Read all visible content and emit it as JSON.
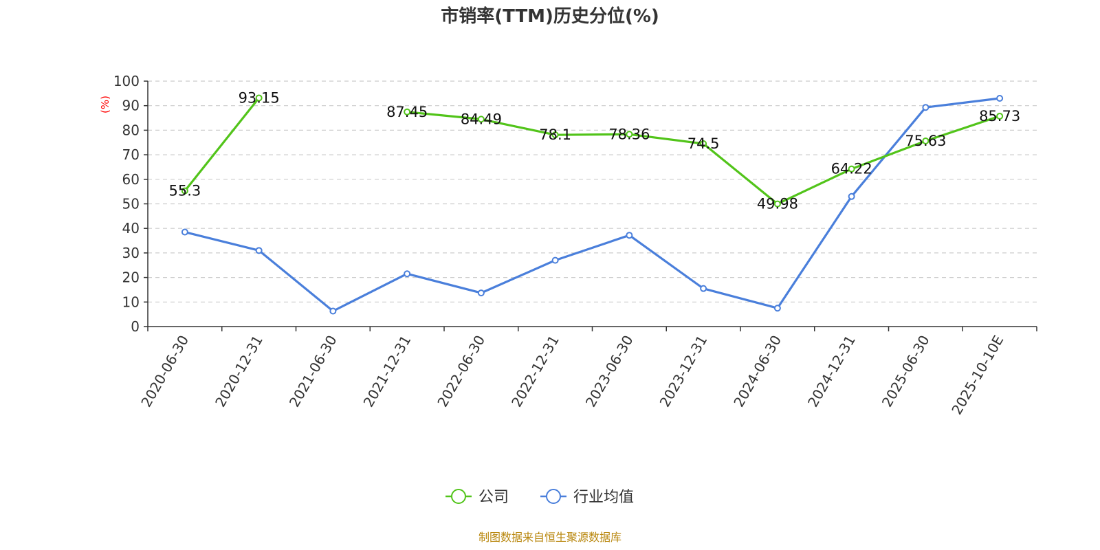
{
  "chart_data": {
    "type": "line",
    "title": "市销率(TTM)历史分位(%)",
    "ylabel": "(%)",
    "ylim": [
      0,
      100
    ],
    "yticks": [
      0,
      10,
      20,
      30,
      40,
      50,
      60,
      70,
      80,
      90,
      100
    ],
    "grid": true,
    "legend_position": "bottom",
    "categories": [
      "2020-06-30",
      "2020-12-31",
      "2021-06-30",
      "2021-12-31",
      "2022-06-30",
      "2022-12-31",
      "2023-06-30",
      "2023-12-31",
      "2024-06-30",
      "2024-12-31",
      "2025-06-30",
      "2025-10-10E"
    ],
    "series": [
      {
        "name": "公司",
        "color": "#52c41a",
        "values": [
          55.3,
          93.15,
          null,
          87.45,
          84.49,
          78.1,
          78.36,
          74.5,
          49.98,
          64.22,
          75.63,
          85.73
        ],
        "labels": [
          "55.3",
          "93.15",
          "",
          "87.45",
          "84.49",
          "78.1",
          "78.36",
          "74.5",
          "49.98",
          "64.22",
          "75.63",
          "85.73"
        ]
      },
      {
        "name": "行业均值",
        "color": "#4a7fdb",
        "values": [
          38.5,
          31,
          6.3,
          21.5,
          13.7,
          27,
          37.2,
          15.5,
          7.5,
          53,
          89.3,
          93
        ]
      }
    ],
    "source": "制图数据来自恒生聚源数据库",
    "source_color": "#b8860b",
    "unit_color": "#ff0000"
  }
}
